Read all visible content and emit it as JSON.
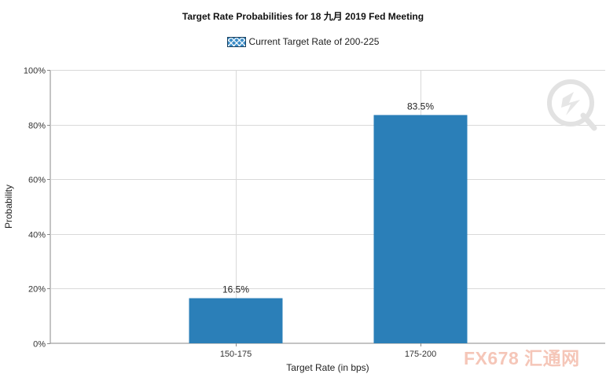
{
  "chart_data": {
    "type": "bar",
    "title": "Target Rate Probabilities for 18 九月 2019  Fed Meeting",
    "legend": [
      "Current Target Rate of 200-225"
    ],
    "legend_placement": "top-center",
    "xlabel": "Target Rate (in bps)",
    "ylabel": "Probability",
    "categories": [
      "150-175",
      "175-200"
    ],
    "values": [
      16.5,
      83.5
    ],
    "data_labels": [
      "16.5%",
      "83.5%"
    ],
    "ylim": [
      0,
      100
    ],
    "yticks": [
      "0%",
      "20%",
      "40%",
      "60%",
      "80%",
      "100%"
    ],
    "grid": true,
    "bar_color": "#2b7fb8"
  },
  "watermark": {
    "text": "FX678 汇通网"
  }
}
